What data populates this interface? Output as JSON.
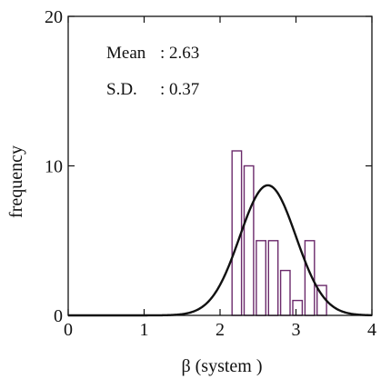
{
  "chart_data": {
    "type": "bar",
    "title": "",
    "xlabel": "β (system )",
    "ylabel": "frequency",
    "xlim": [
      0,
      4
    ],
    "ylim": [
      0,
      20
    ],
    "x_ticks": [
      "0",
      "1",
      "2",
      "3",
      "4"
    ],
    "y_ticks": [
      "0",
      "10",
      "20"
    ],
    "bin_width": 0.16,
    "bins": [
      {
        "start": 2.14,
        "value": 11
      },
      {
        "start": 2.3,
        "value": 10
      },
      {
        "start": 2.46,
        "value": 5
      },
      {
        "start": 2.62,
        "value": 5
      },
      {
        "start": 2.78,
        "value": 3
      },
      {
        "start": 2.94,
        "value": 1
      },
      {
        "start": 3.1,
        "value": 5
      },
      {
        "start": 3.26,
        "value": 2
      }
    ],
    "fit": {
      "type": "normal",
      "mean": 2.63,
      "sd": 0.37,
      "peak": 8.7
    },
    "colors": {
      "bars": "#6b2a6b",
      "curve": "#111111",
      "axes": "#111111"
    },
    "annotations": {
      "mean_label": "Mean",
      "mean_value": ": 2.63",
      "sd_label": "S.D.",
      "sd_value": ": 0.37"
    }
  }
}
